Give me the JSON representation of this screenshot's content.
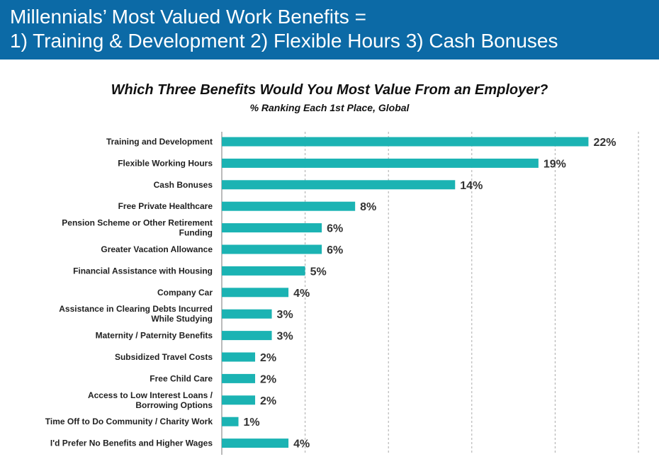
{
  "header": {
    "title_line1": "Millennials’ Most Valued Work Benefits =",
    "title_line2": "1) Training & Development  2) Flexible Hours  3) Cash Bonuses"
  },
  "colors": {
    "banner": "#0c6aa6",
    "bar": "#1bb3b3",
    "grid": "#aaaaaa"
  },
  "chart_data": {
    "type": "bar",
    "orientation": "horizontal",
    "title": "Which Three Benefits Would You Most Value From an Employer?",
    "subtitle": "% Ranking Each 1st Place, Global",
    "unit": "%",
    "xlim": [
      0,
      25
    ],
    "grid": true,
    "grid_step": 5,
    "categories": [
      [
        "Training and Development"
      ],
      [
        "Flexible Working Hours"
      ],
      [
        "Cash Bonuses"
      ],
      [
        "Free Private Healthcare"
      ],
      [
        "Pension Scheme or Other Retirement",
        "Funding"
      ],
      [
        "Greater Vacation Allowance"
      ],
      [
        "Financial Assistance with Housing"
      ],
      [
        "Company Car"
      ],
      [
        "Assistance in Clearing Debts Incurred",
        "While Studying"
      ],
      [
        "Maternity / Paternity Benefits"
      ],
      [
        "Subsidized Travel Costs"
      ],
      [
        "Free Child Care"
      ],
      [
        "Access to Low Interest Loans /",
        "Borrowing Options"
      ],
      [
        "Time Off to Do Community / Charity Work"
      ],
      [
        "I'd Prefer No Benefits and Higher Wages"
      ]
    ],
    "values": [
      22,
      19,
      14,
      8,
      6,
      6,
      5,
      4,
      3,
      3,
      2,
      2,
      2,
      1,
      4
    ],
    "labels": [
      "22%",
      "19%",
      "14%",
      "8%",
      "6%",
      "6%",
      "5%",
      "4%",
      "3%",
      "3%",
      "2%",
      "2%",
      "2%",
      "1%",
      "4%"
    ]
  }
}
